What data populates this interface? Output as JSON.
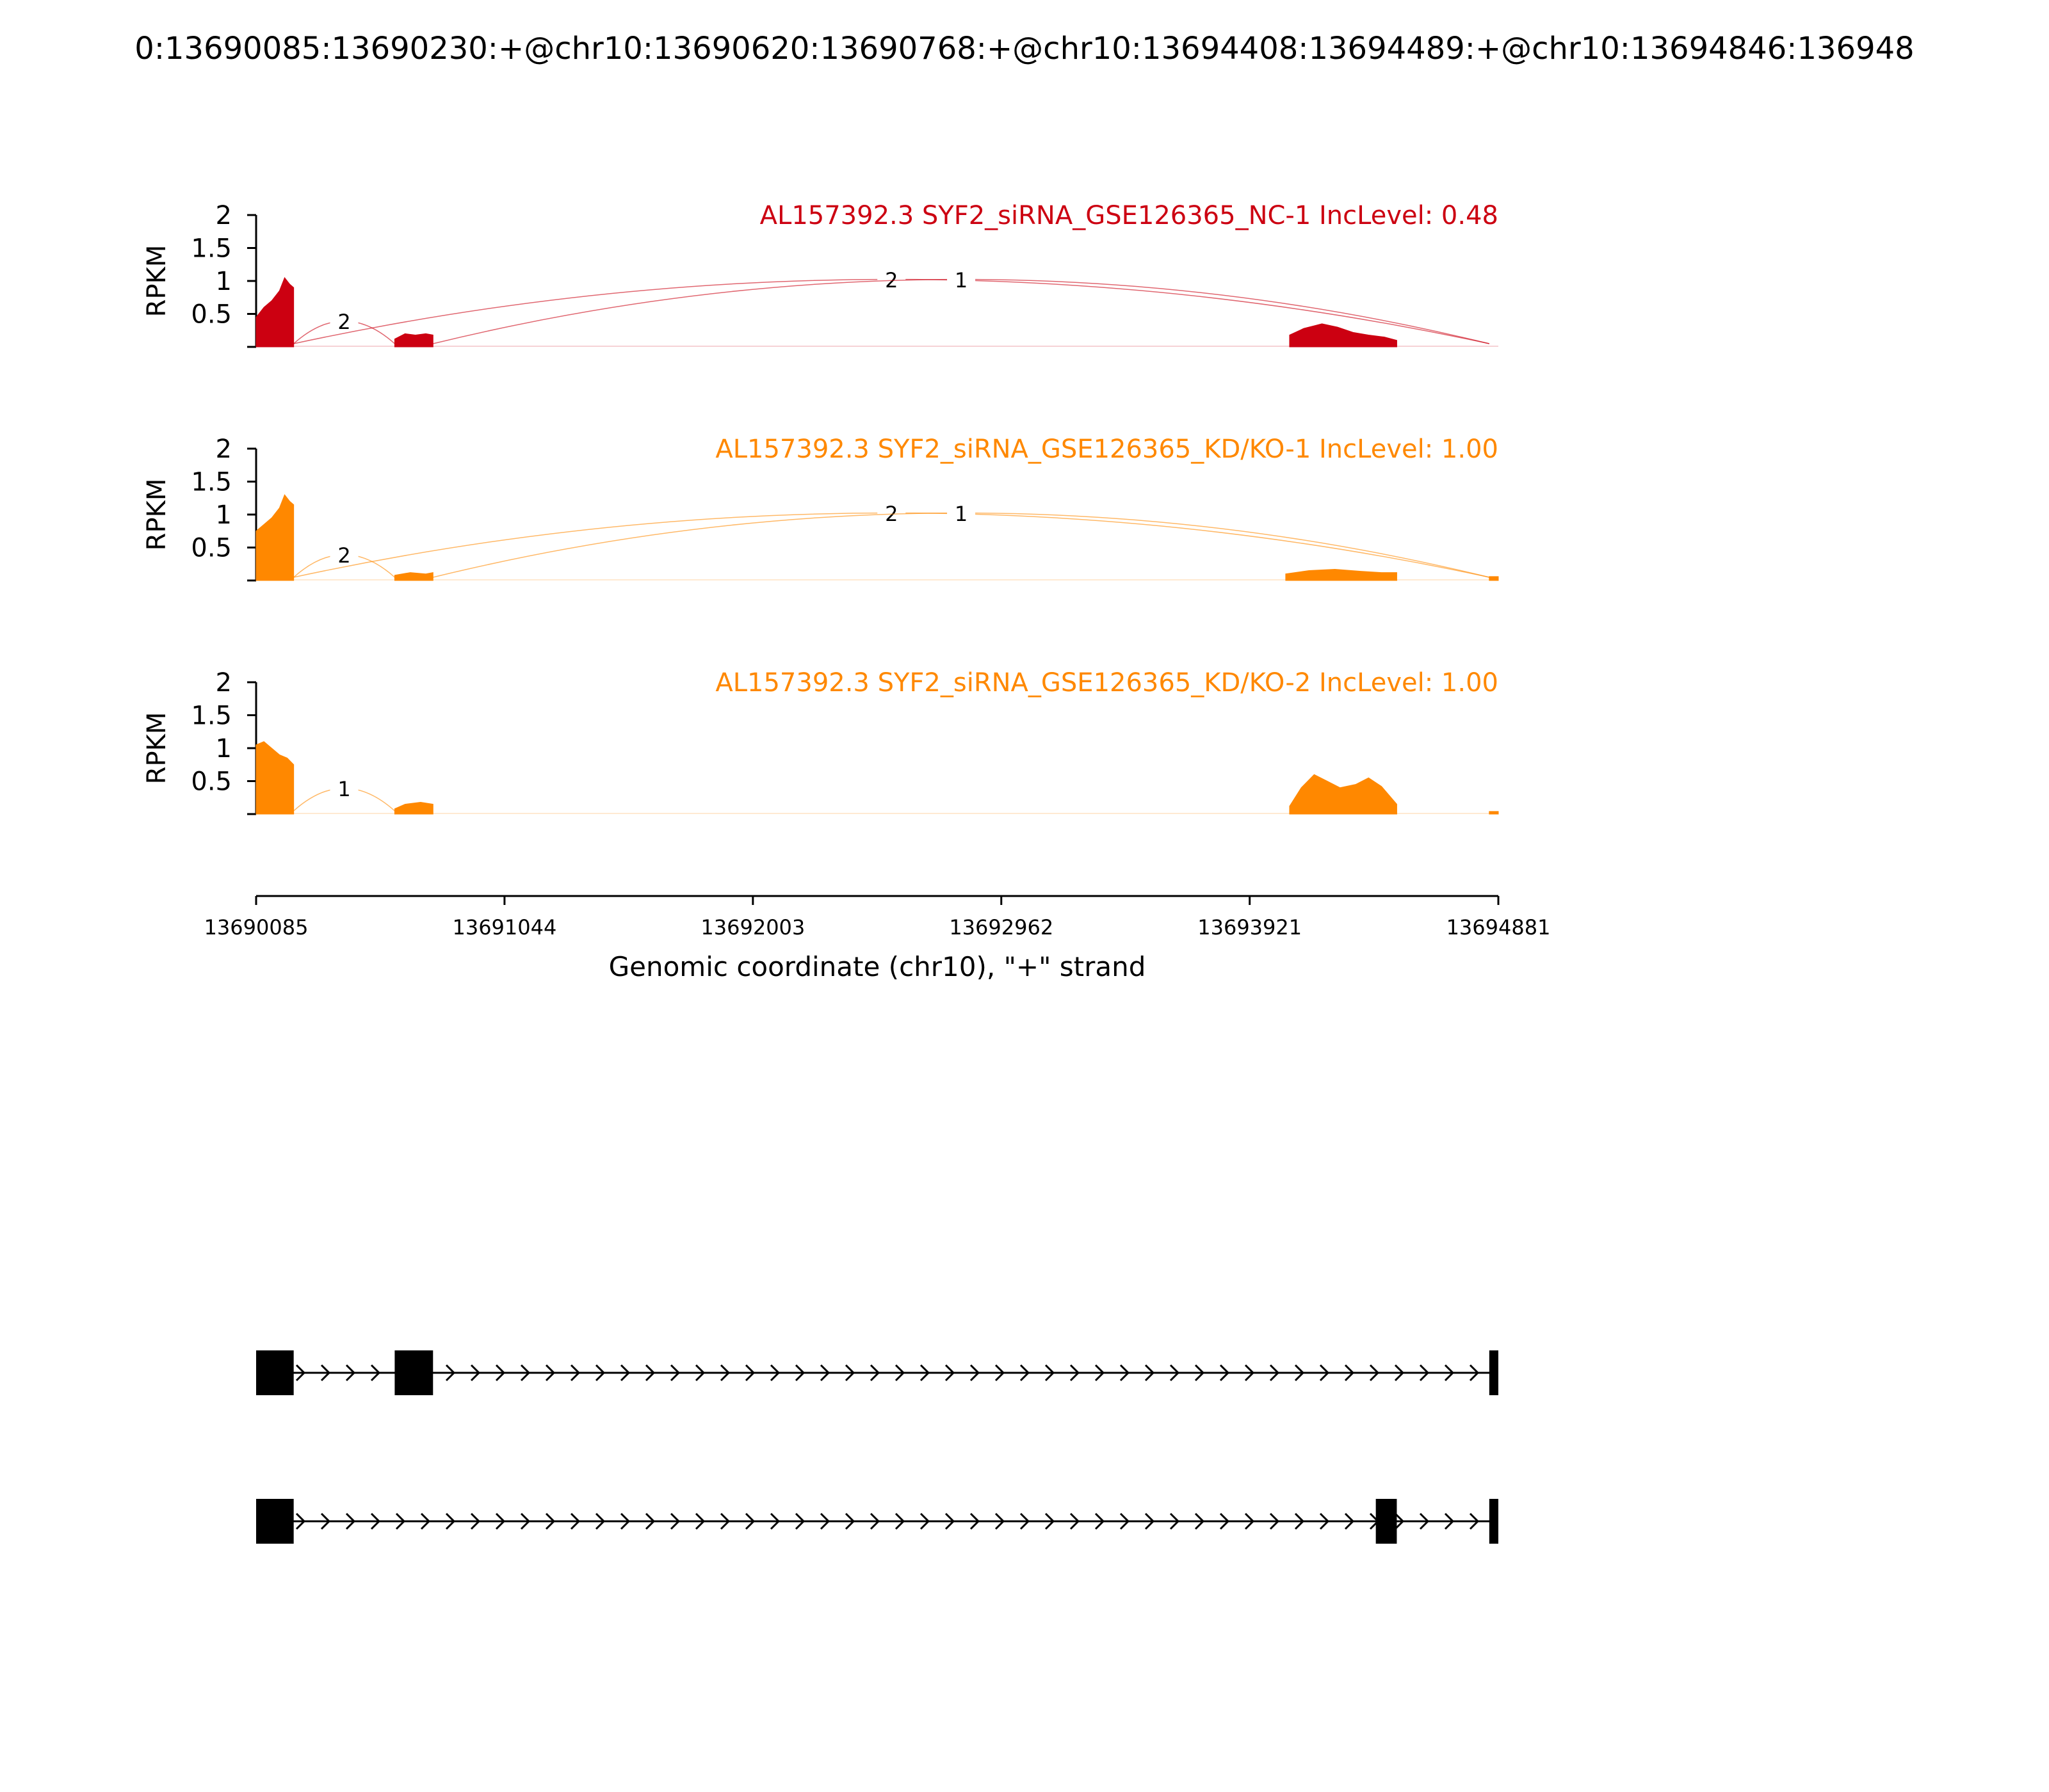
{
  "title": "0:13690085:13690230:+@chr10:13690620:13690768:+@chr10:13694408:13694489:+@chr10:13694846:136948",
  "chart_data": {
    "type": "area",
    "x_range": [
      13690085,
      13694881
    ],
    "xlabel": "Genomic coordinate (chr10), \"+\" strand",
    "xticks": [
      {
        "value": 13690085,
        "label": "13690085"
      },
      {
        "value": 13691044,
        "label": "13691044"
      },
      {
        "value": 13692003,
        "label": "13692003"
      },
      {
        "value": 13692962,
        "label": "13692962"
      },
      {
        "value": 13693921,
        "label": "13693921"
      },
      {
        "value": 13694881,
        "label": "13694881"
      }
    ],
    "ylabel": "RPKM",
    "ylim": [
      0,
      2
    ],
    "yticks": [
      {
        "value": 0.5,
        "label": "0.5"
      },
      {
        "value": 1,
        "label": "1"
      },
      {
        "value": 1.5,
        "label": "1.5"
      },
      {
        "value": 2,
        "label": "2"
      }
    ],
    "tracks": [
      {
        "label": "AL157392.3 SYF2_siRNA_GSE126365_NC-1 IncLevel: 0.48",
        "color": "#cc0011",
        "coverage": [
          {
            "x": 13690085,
            "y": 0.45
          },
          {
            "x": 13690115,
            "y": 0.6
          },
          {
            "x": 13690145,
            "y": 0.7
          },
          {
            "x": 13690175,
            "y": 0.85
          },
          {
            "x": 13690195,
            "y": 1.05
          },
          {
            "x": 13690215,
            "y": 0.95
          },
          {
            "x": 13690230,
            "y": 0.9
          },
          {
            "x": 13690620,
            "y": 0.12
          },
          {
            "x": 13690660,
            "y": 0.2
          },
          {
            "x": 13690700,
            "y": 0.18
          },
          {
            "x": 13690740,
            "y": 0.2
          },
          {
            "x": 13690768,
            "y": 0.18
          },
          {
            "x": 13694075,
            "y": 0.18
          },
          {
            "x": 13694130,
            "y": 0.28
          },
          {
            "x": 13694200,
            "y": 0.35
          },
          {
            "x": 13694260,
            "y": 0.3
          },
          {
            "x": 13694320,
            "y": 0.22
          },
          {
            "x": 13694380,
            "y": 0.18
          },
          {
            "x": 13694440,
            "y": 0.15
          },
          {
            "x": 13694489,
            "y": 0.1
          }
        ],
        "junctions": [
          {
            "from": 13690230,
            "to": 13690620,
            "count": "2"
          },
          {
            "from": 13690230,
            "to": 13694846,
            "count": "2"
          },
          {
            "from": 13690768,
            "to": 13694846,
            "count": "1"
          }
        ]
      },
      {
        "label": "AL157392.3 SYF2_siRNA_GSE126365_KD/KO-1 IncLevel: 1.00",
        "color": "#ff8800",
        "coverage": [
          {
            "x": 13690085,
            "y": 0.75
          },
          {
            "x": 13690115,
            "y": 0.85
          },
          {
            "x": 13690145,
            "y": 0.95
          },
          {
            "x": 13690175,
            "y": 1.1
          },
          {
            "x": 13690195,
            "y": 1.3
          },
          {
            "x": 13690215,
            "y": 1.2
          },
          {
            "x": 13690230,
            "y": 1.15
          },
          {
            "x": 13690620,
            "y": 0.08
          },
          {
            "x": 13690680,
            "y": 0.12
          },
          {
            "x": 13690740,
            "y": 0.1
          },
          {
            "x": 13690768,
            "y": 0.12
          },
          {
            "x": 13694060,
            "y": 0.1
          },
          {
            "x": 13694150,
            "y": 0.15
          },
          {
            "x": 13694250,
            "y": 0.17
          },
          {
            "x": 13694350,
            "y": 0.14
          },
          {
            "x": 13694430,
            "y": 0.12
          },
          {
            "x": 13694489,
            "y": 0.12
          },
          {
            "x": 13694846,
            "y": 0.06
          },
          {
            "x": 13694881,
            "y": 0.06
          }
        ],
        "junctions": [
          {
            "from": 13690230,
            "to": 13690620,
            "count": "2"
          },
          {
            "from": 13690230,
            "to": 13694846,
            "count": "2"
          },
          {
            "from": 13690768,
            "to": 13694846,
            "count": "1"
          }
        ]
      },
      {
        "label": "AL157392.3 SYF2_siRNA_GSE126365_KD/KO-2 IncLevel: 1.00",
        "color": "#ff8800",
        "coverage": [
          {
            "x": 13690085,
            "y": 1.05
          },
          {
            "x": 13690115,
            "y": 1.1
          },
          {
            "x": 13690145,
            "y": 1.0
          },
          {
            "x": 13690175,
            "y": 0.9
          },
          {
            "x": 13690205,
            "y": 0.85
          },
          {
            "x": 13690230,
            "y": 0.75
          },
          {
            "x": 13690620,
            "y": 0.08
          },
          {
            "x": 13690660,
            "y": 0.15
          },
          {
            "x": 13690720,
            "y": 0.18
          },
          {
            "x": 13690768,
            "y": 0.15
          },
          {
            "x": 13694075,
            "y": 0.12
          },
          {
            "x": 13694120,
            "y": 0.4
          },
          {
            "x": 13694170,
            "y": 0.6
          },
          {
            "x": 13694220,
            "y": 0.5
          },
          {
            "x": 13694270,
            "y": 0.4
          },
          {
            "x": 13694330,
            "y": 0.45
          },
          {
            "x": 13694380,
            "y": 0.55
          },
          {
            "x": 13694430,
            "y": 0.42
          },
          {
            "x": 13694489,
            "y": 0.15
          },
          {
            "x": 13694846,
            "y": 0.04
          },
          {
            "x": 13694881,
            "y": 0.04
          }
        ],
        "junctions": [
          {
            "from": 13690230,
            "to": 13690620,
            "count": "1"
          }
        ]
      }
    ],
    "isoforms": [
      {
        "exons": [
          [
            13690085,
            13690230
          ],
          [
            13690620,
            13690768
          ],
          [
            13694846,
            13694881
          ]
        ]
      },
      {
        "exons": [
          [
            13690085,
            13690230
          ],
          [
            13694408,
            13694489
          ],
          [
            13694846,
            13694881
          ]
        ]
      }
    ]
  }
}
